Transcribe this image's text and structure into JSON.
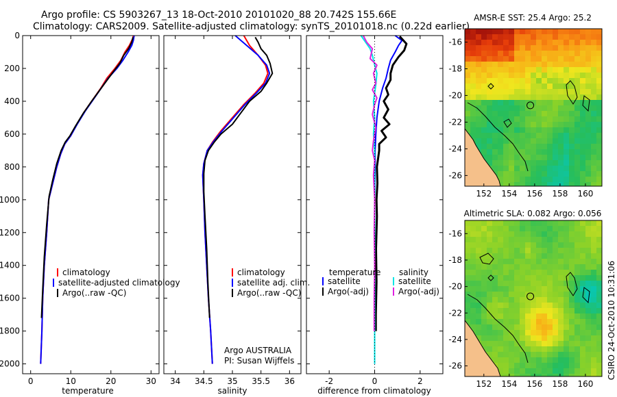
{
  "title": {
    "line1": "Argo profile: CS 5903267_13 18-Oct-2010 20101020_88 20.742S 155.66E",
    "line2": "Climatology: CARS2009. Satellite-adjusted climatology: synTS_20101018.nc (0.22d earlier)"
  },
  "side_stamp": "CSIRO 24-Oct-2010 10:31:06",
  "colors": {
    "red": "#ff0000",
    "blue": "#0000ff",
    "black": "#000000",
    "cyan": "#00e5e5",
    "magenta": "#e020e0",
    "land": "#f5c08a"
  },
  "chart_data": [
    {
      "id": "temperature",
      "type": "line",
      "xlabel": "temperature",
      "xlim": [
        -2,
        32
      ],
      "ylim": [
        0,
        2060
      ],
      "xticks": [
        0,
        10,
        20,
        30
      ],
      "yticks": [
        0,
        200,
        400,
        600,
        800,
        1000,
        1200,
        1400,
        1600,
        1800,
        2000
      ],
      "y_reversed": true,
      "legend": [
        "climatology",
        "satellite-adjusted climatology",
        "Argo(..raw -QC)"
      ],
      "series": [
        {
          "name": "climatology",
          "color": "red",
          "points": [
            [
              25.6,
              0
            ],
            [
              25.4,
              20
            ],
            [
              24.6,
              60
            ],
            [
              23.5,
              100
            ],
            [
              22.5,
              150
            ],
            [
              21,
              200
            ],
            [
              19,
              260
            ],
            [
              17.5,
              320
            ],
            [
              15.5,
              390
            ],
            [
              13.5,
              460
            ],
            [
              11.5,
              540
            ],
            [
              10,
              610
            ],
            [
              8.5,
              660
            ],
            [
              7.5,
              720
            ],
            [
              6.5,
              800
            ],
            [
              5.5,
              900
            ],
            [
              4.5,
              1000
            ],
            [
              4,
              1200
            ],
            [
              3.4,
              1400
            ],
            [
              3,
              1600
            ],
            [
              2.8,
              1800
            ],
            [
              2.5,
              2000
            ]
          ]
        },
        {
          "name": "satellite-adjusted climatology",
          "color": "blue",
          "points": [
            [
              25.8,
              0
            ],
            [
              25.6,
              30
            ],
            [
              25.2,
              60
            ],
            [
              24.3,
              100
            ],
            [
              23,
              150
            ],
            [
              21.5,
              200
            ],
            [
              19.3,
              260
            ],
            [
              17.6,
              320
            ],
            [
              15.6,
              390
            ],
            [
              13.6,
              460
            ],
            [
              11.6,
              540
            ],
            [
              10,
              610
            ],
            [
              8.5,
              660
            ],
            [
              7.5,
              720
            ],
            [
              6.5,
              800
            ],
            [
              5.5,
              900
            ],
            [
              4.5,
              1000
            ],
            [
              4,
              1200
            ],
            [
              3.4,
              1400
            ],
            [
              3,
              1600
            ],
            [
              2.8,
              1800
            ],
            [
              2.5,
              2000
            ]
          ]
        },
        {
          "name": "Argo(..raw -QC)",
          "color": "black",
          "points": [
            [
              25.5,
              10
            ],
            [
              25.2,
              40
            ],
            [
              24.4,
              80
            ],
            [
              23.2,
              120
            ],
            [
              22.2,
              170
            ],
            [
              20.6,
              220
            ],
            [
              18.8,
              280
            ],
            [
              17,
              340
            ],
            [
              15.2,
              400
            ],
            [
              13.2,
              470
            ],
            [
              11.2,
              550
            ],
            [
              9.8,
              610
            ],
            [
              8.6,
              650
            ],
            [
              7.6,
              700
            ],
            [
              6.5,
              780
            ],
            [
              5.5,
              880
            ],
            [
              4.6,
              980
            ],
            [
              4,
              1150
            ],
            [
              3.4,
              1350
            ],
            [
              3,
              1550
            ],
            [
              2.7,
              1720
            ]
          ]
        }
      ]
    },
    {
      "id": "salinity",
      "type": "line",
      "xlabel": "salinity",
      "xlim": [
        33.8,
        36.2
      ],
      "ylim": [
        0,
        2060
      ],
      "xticks": [
        34,
        34.5,
        35,
        35.5,
        36
      ],
      "yticks": [
        0,
        200,
        400,
        600,
        800,
        1000,
        1200,
        1400,
        1600,
        1800,
        2000
      ],
      "y_reversed": true,
      "legend": [
        "climatology",
        "satellite adj. clim.",
        "Argo(..raw -QC)"
      ],
      "annotation": [
        "Argo AUSTRALIA",
        "PI: Susan Wijffels"
      ],
      "series": [
        {
          "name": "climatology",
          "color": "red",
          "points": [
            [
              35.2,
              0
            ],
            [
              35.3,
              60
            ],
            [
              35.45,
              120
            ],
            [
              35.58,
              180
            ],
            [
              35.62,
              230
            ],
            [
              35.55,
              290
            ],
            [
              35.4,
              350
            ],
            [
              35.2,
              420
            ],
            [
              35,
              500
            ],
            [
              34.8,
              580
            ],
            [
              34.65,
              650
            ],
            [
              34.56,
              700
            ],
            [
              34.5,
              780
            ],
            [
              34.48,
              850
            ],
            [
              34.5,
              1000
            ],
            [
              34.52,
              1200
            ],
            [
              34.55,
              1400
            ],
            [
              34.58,
              1600
            ],
            [
              34.62,
              1800
            ],
            [
              34.65,
              2000
            ]
          ]
        },
        {
          "name": "satellite adj. clim.",
          "color": "blue",
          "points": [
            [
              35.05,
              0
            ],
            [
              35.25,
              60
            ],
            [
              35.45,
              120
            ],
            [
              35.6,
              180
            ],
            [
              35.65,
              230
            ],
            [
              35.58,
              290
            ],
            [
              35.42,
              350
            ],
            [
              35.22,
              420
            ],
            [
              35.02,
              500
            ],
            [
              34.82,
              580
            ],
            [
              34.66,
              650
            ],
            [
              34.56,
              700
            ],
            [
              34.5,
              780
            ],
            [
              34.48,
              850
            ],
            [
              34.5,
              1000
            ],
            [
              34.52,
              1200
            ],
            [
              34.55,
              1400
            ],
            [
              34.58,
              1600
            ],
            [
              34.62,
              1800
            ],
            [
              34.65,
              2000
            ]
          ]
        },
        {
          "name": "Argo(..raw -QC)",
          "color": "black",
          "points": [
            [
              35.4,
              10
            ],
            [
              35.45,
              40
            ],
            [
              35.5,
              80
            ],
            [
              35.6,
              120
            ],
            [
              35.66,
              170
            ],
            [
              35.7,
              230
            ],
            [
              35.6,
              290
            ],
            [
              35.5,
              340
            ],
            [
              35.3,
              400
            ],
            [
              35.15,
              470
            ],
            [
              35,
              540
            ],
            [
              34.8,
              600
            ],
            [
              34.68,
              650
            ],
            [
              34.58,
              700
            ],
            [
              34.52,
              760
            ],
            [
              34.5,
              840
            ],
            [
              34.5,
              950
            ],
            [
              34.52,
              1100
            ],
            [
              34.55,
              1300
            ],
            [
              34.57,
              1500
            ],
            [
              34.6,
              1720
            ]
          ]
        }
      ]
    },
    {
      "id": "difference",
      "type": "line",
      "xlabel": "difference from climatology",
      "xlim": [
        -3,
        3
      ],
      "ylim": [
        0,
        2060
      ],
      "xticks": [
        -2,
        0,
        2
      ],
      "yticks": [
        0,
        200,
        400,
        600,
        800,
        1000,
        1200,
        1400,
        1600,
        1800,
        2000
      ],
      "y_reversed": true,
      "legend": {
        "temperature_header": "temperature",
        "temperature": [
          "satellite",
          "Argo(-adj)"
        ],
        "salinity_header": "salinity",
        "salinity": [
          "satellite",
          "Argo(-adj)"
        ]
      },
      "series": [
        {
          "name": "temperature satellite",
          "color": "blue",
          "points": [
            [
              0.9,
              0
            ],
            [
              1.2,
              30
            ],
            [
              1.05,
              60
            ],
            [
              0.9,
              100
            ],
            [
              0.7,
              150
            ],
            [
              0.6,
              200
            ],
            [
              0.5,
              260
            ],
            [
              0.35,
              320
            ],
            [
              0.2,
              400
            ],
            [
              0.1,
              500
            ],
            [
              0.05,
              600
            ],
            [
              0.02,
              700
            ],
            [
              0.02,
              800
            ],
            [
              0,
              1000
            ],
            [
              0,
              1400
            ],
            [
              0,
              1800
            ],
            [
              0,
              2000
            ]
          ]
        },
        {
          "name": "temperature Argo(-adj)",
          "color": "black",
          "points": [
            [
              1.1,
              5
            ],
            [
              1.4,
              50
            ],
            [
              1.3,
              90
            ],
            [
              1.05,
              130
            ],
            [
              0.8,
              180
            ],
            [
              0.7,
              230
            ],
            [
              0.7,
              270
            ],
            [
              0.5,
              320
            ],
            [
              0.6,
              360
            ],
            [
              0.4,
              400
            ],
            [
              0.6,
              450
            ],
            [
              0.4,
              500
            ],
            [
              0.65,
              540
            ],
            [
              0.3,
              580
            ],
            [
              0.5,
              620
            ],
            [
              0.2,
              660
            ],
            [
              0.2,
              700
            ],
            [
              0.1,
              800
            ],
            [
              0.12,
              900
            ],
            [
              0.08,
              1000
            ],
            [
              0.1,
              1100
            ],
            [
              0.06,
              1300
            ],
            [
              0.08,
              1500
            ],
            [
              0.05,
              1700
            ],
            [
              0.05,
              1800
            ]
          ]
        },
        {
          "name": "salinity satellite",
          "color": "cyan",
          "points": [
            [
              -0.6,
              0
            ],
            [
              -0.4,
              40
            ],
            [
              -0.2,
              80
            ],
            [
              -0.1,
              120
            ],
            [
              0,
              180
            ],
            [
              0.1,
              230
            ],
            [
              0.05,
              300
            ],
            [
              -0.05,
              400
            ],
            [
              0,
              500
            ],
            [
              -0.05,
              600
            ],
            [
              0,
              700
            ],
            [
              0,
              900
            ],
            [
              0,
              1200
            ],
            [
              0,
              1600
            ],
            [
              0,
              2000
            ]
          ]
        },
        {
          "name": "salinity Argo(-adj)",
          "color": "magenta",
          "points": [
            [
              -0.5,
              0
            ],
            [
              -0.35,
              40
            ],
            [
              -0.1,
              80
            ],
            [
              -0.2,
              140
            ],
            [
              0.1,
              180
            ],
            [
              -0.05,
              230
            ],
            [
              0.05,
              290
            ],
            [
              -0.1,
              330
            ],
            [
              0.1,
              380
            ],
            [
              0,
              420
            ],
            [
              -0.1,
              480
            ],
            [
              0.05,
              560
            ],
            [
              -0.05,
              640
            ],
            [
              -0.1,
              700
            ],
            [
              0,
              760
            ],
            [
              -0.05,
              850
            ],
            [
              0,
              1000
            ],
            [
              -0.02,
              1200
            ],
            [
              0,
              1400
            ],
            [
              -0.02,
              1600
            ],
            [
              -0.02,
              1800
            ]
          ]
        }
      ]
    },
    {
      "id": "sst_map",
      "type": "heatmap",
      "title": "AMSR-E SST: 25.4  Argo: 25.2",
      "xlim": [
        150.5,
        161.3
      ],
      "ylim": [
        -26.8,
        -15
      ],
      "xticks": [
        152,
        154,
        156,
        158,
        160
      ],
      "yticks": [
        -16,
        -18,
        -20,
        -22,
        -24,
        -26
      ],
      "profile_location": [
        155.66,
        -20.742
      ]
    },
    {
      "id": "sla_map",
      "type": "heatmap",
      "title": "Altimetric SLA: 0.082  Argo: 0.056",
      "xlim": [
        150.5,
        161.3
      ],
      "ylim": [
        -26.8,
        -15
      ],
      "xticks": [
        152,
        154,
        156,
        158,
        160
      ],
      "yticks": [
        -16,
        -18,
        -20,
        -22,
        -24,
        -26
      ],
      "profile_location": [
        155.66,
        -20.742
      ]
    }
  ]
}
